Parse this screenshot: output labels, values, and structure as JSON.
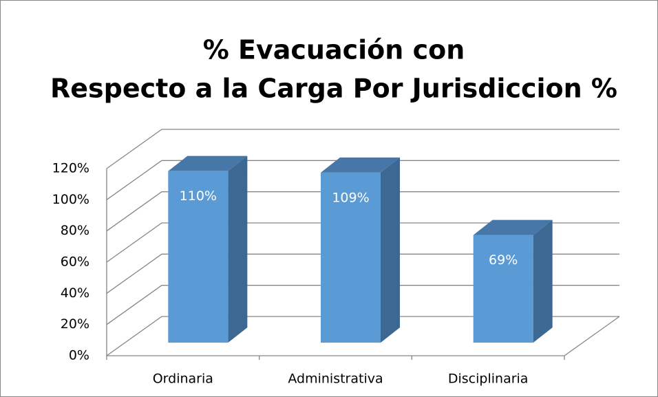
{
  "chart_data": {
    "type": "bar3d",
    "title": "% Evacuación con",
    "subtitle": "Respecto a la Carga Por Jurisdiccion %",
    "categories": [
      "Ordinaria",
      "Administrativa",
      "Disciplinaria"
    ],
    "values": [
      110,
      109,
      69
    ],
    "value_labels": [
      "110%",
      "109%",
      "69%"
    ],
    "color": "#5b9bd5",
    "ylim": [
      0,
      120
    ],
    "yticks": [
      {
        "value": 0,
        "label": "0%"
      },
      {
        "value": 20,
        "label": "20%"
      },
      {
        "value": 40,
        "label": "40%"
      },
      {
        "value": 60,
        "label": "60%"
      },
      {
        "value": 80,
        "label": "80%"
      },
      {
        "value": 100,
        "label": "100%"
      },
      {
        "value": 120,
        "label": "120%"
      }
    ],
    "grid": true
  }
}
